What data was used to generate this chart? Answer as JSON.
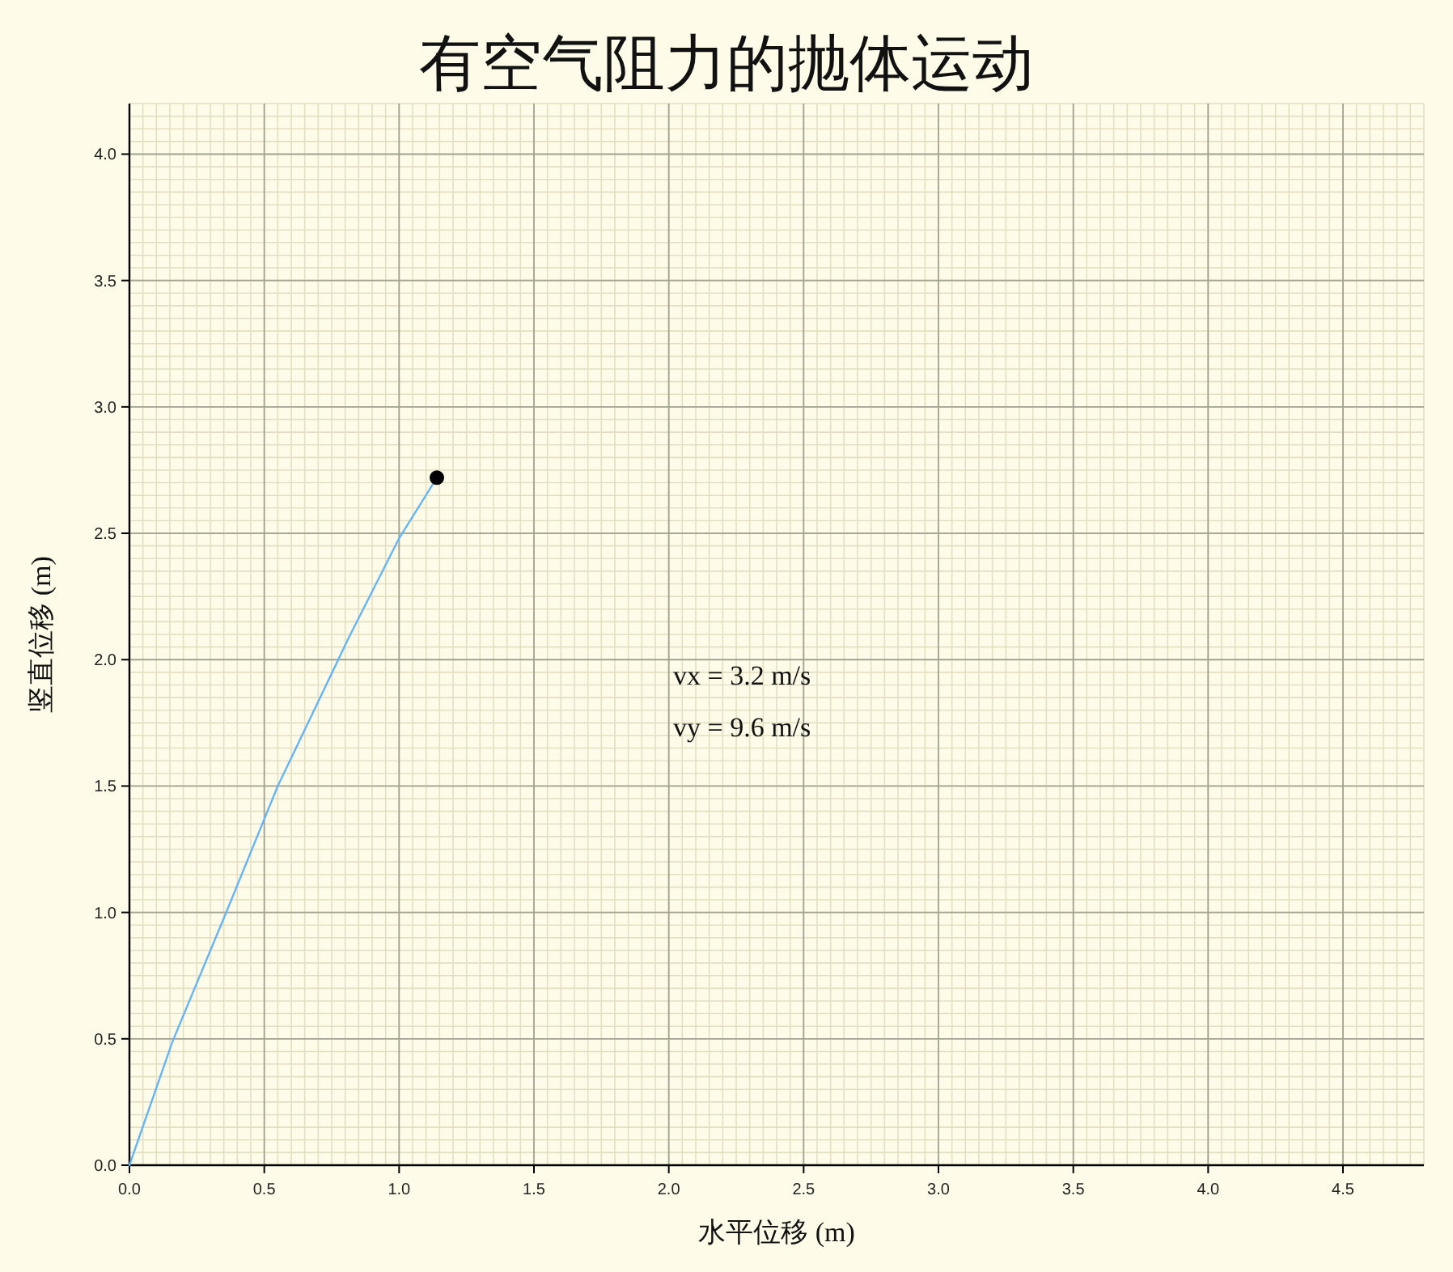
{
  "chart_data": {
    "type": "line",
    "title": "有空气阻力的抛体运动",
    "xlabel": "水平位移 (m)",
    "ylabel": "竖直位移 (m)",
    "series": [
      {
        "color": "#64b5f6",
        "x": [
          0,
          0.16,
          0.355,
          0.55,
          0.77,
          0.81,
          1.0,
          1.14
        ],
        "values": [
          0,
          0.49,
          0.99,
          1.5,
          1.99,
          2.08,
          2.48,
          2.72
        ]
      },
      {
        "type": "scatter",
        "color": "#000000",
        "marker": "circle",
        "x": [
          1.14
        ],
        "values": [
          2.72
        ]
      }
    ],
    "xlim": [
      0,
      4.8
    ],
    "ylim": [
      0,
      4.2
    ],
    "xticks": [
      {
        "value": 0,
        "label": "0.0"
      },
      {
        "value": 0.5,
        "label": "0.5"
      },
      {
        "value": 1,
        "label": "1.0"
      },
      {
        "value": 1.5,
        "label": "1.5"
      },
      {
        "value": 2,
        "label": "2.0"
      },
      {
        "value": 2.5,
        "label": "2.5"
      },
      {
        "value": 3,
        "label": "3.0"
      },
      {
        "value": 3.5,
        "label": "3.5"
      },
      {
        "value": 4,
        "label": "4.0"
      },
      {
        "value": 4.5,
        "label": "4.5"
      }
    ],
    "yticks": [
      {
        "value": 0,
        "label": "0.0"
      },
      {
        "value": 0.5,
        "label": "0.5"
      },
      {
        "value": 1,
        "label": "1.0"
      },
      {
        "value": 1.5,
        "label": "1.5"
      },
      {
        "value": 2,
        "label": "2.0"
      },
      {
        "value": 2.5,
        "label": "2.5"
      },
      {
        "value": 3,
        "label": "3.0"
      },
      {
        "value": 3.5,
        "label": "3.5"
      },
      {
        "value": 4,
        "label": "4.0"
      }
    ],
    "grid": true,
    "annotations": [
      "vx = 3.2 m/s",
      "vy = 9.6 m/s"
    ]
  }
}
